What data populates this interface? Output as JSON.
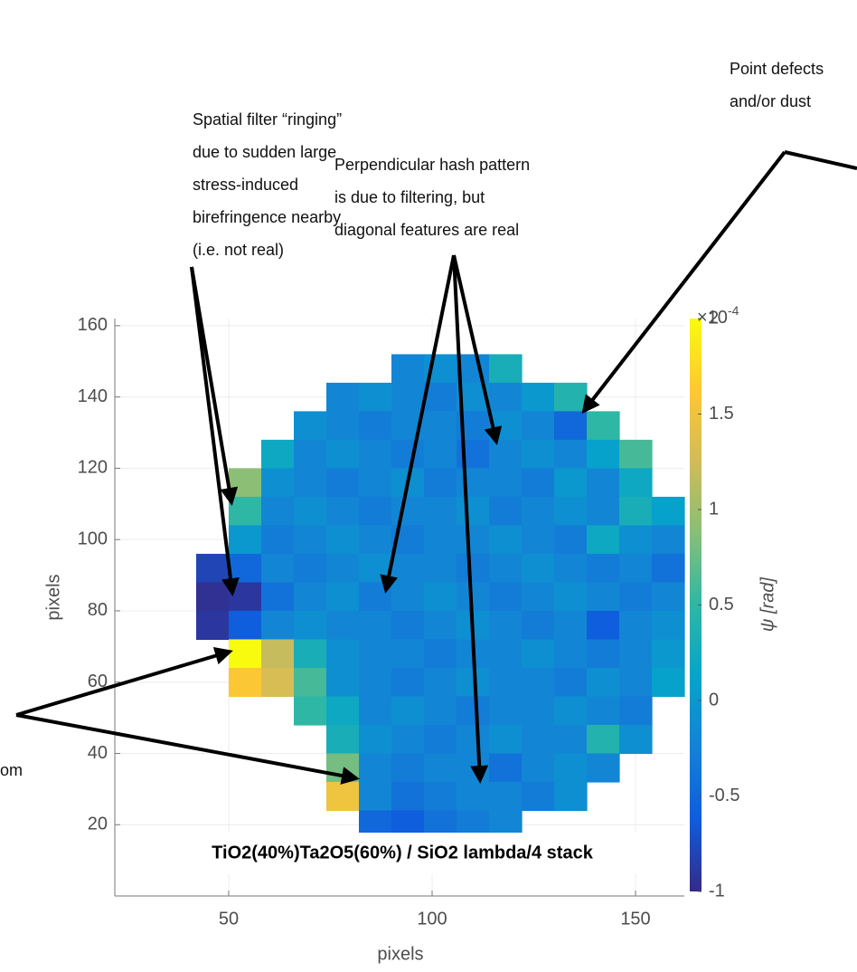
{
  "chart_data": {
    "type": "heatmap",
    "xlabel": "pixels",
    "ylabel": "pixels",
    "xlim": [
      22,
      162
    ],
    "ylim": [
      0,
      162
    ],
    "xticks": [
      50,
      100,
      150
    ],
    "yticks": [
      20,
      40,
      60,
      80,
      100,
      120,
      140,
      160
    ],
    "grid": true,
    "colormap": "parula",
    "clim": [
      -1,
      2
    ],
    "cticks": [
      -1,
      -0.5,
      0,
      0.5,
      1,
      1.5,
      2
    ],
    "colorbar_multiplier": "×10",
    "colorbar_exponent": "-4",
    "colorbar_label": "ψ [rad]",
    "inset_label": "TiO2(40%)Ta2O5(60%) / SiO2 lambda/4 stack",
    "x": [
      46,
      54,
      62,
      70,
      78,
      86,
      94,
      102,
      110,
      118,
      126,
      134,
      142,
      150,
      158
    ],
    "y": [
      148,
      140,
      132,
      124,
      116,
      108,
      100,
      92,
      84,
      76,
      68,
      60,
      52,
      44,
      36,
      28,
      20
    ],
    "z": [
      [
        null,
        null,
        null,
        null,
        null,
        null,
        -0.2,
        -0.1,
        -0.2,
        0.3,
        null,
        null,
        null,
        null,
        null
      ],
      [
        null,
        null,
        null,
        null,
        -0.2,
        -0.1,
        -0.2,
        -0.3,
        -0.1,
        -0.2,
        0,
        0.4,
        null,
        null,
        null
      ],
      [
        null,
        null,
        null,
        -0.1,
        -0.2,
        -0.3,
        -0.2,
        -0.2,
        -0.3,
        -0.1,
        -0.2,
        -0.5,
        0.5,
        null,
        null
      ],
      [
        null,
        null,
        0.2,
        -0.2,
        -0.1,
        -0.2,
        -0.3,
        -0.2,
        -0.4,
        -0.2,
        -0.1,
        -0.2,
        0.1,
        0.6,
        null
      ],
      [
        null,
        0.9,
        -0.1,
        -0.2,
        -0.3,
        -0.2,
        -0.1,
        -0.3,
        -0.2,
        -0.2,
        -0.3,
        0,
        -0.2,
        0.2,
        null
      ],
      [
        null,
        0.5,
        -0.2,
        -0.1,
        -0.2,
        -0.3,
        -0.2,
        -0.2,
        -0.1,
        -0.3,
        -0.2,
        -0.1,
        -0.2,
        0.3,
        0.1
      ],
      [
        null,
        0,
        -0.3,
        -0.2,
        -0.1,
        -0.2,
        -0.3,
        -0.2,
        -0.2,
        -0.1,
        -0.2,
        -0.3,
        0.2,
        -0.1,
        -0.2
      ],
      [
        -0.8,
        -0.5,
        -0.2,
        -0.3,
        -0.2,
        -0.1,
        -0.2,
        -0.2,
        -0.3,
        -0.2,
        -0.1,
        -0.2,
        -0.3,
        -0.2,
        -0.4
      ],
      [
        -0.95,
        -0.9,
        -0.4,
        -0.2,
        -0.1,
        -0.3,
        -0.2,
        -0.1,
        -0.2,
        -0.3,
        -0.2,
        -0.1,
        -0.2,
        -0.3,
        -0.2
      ],
      [
        -0.9,
        -0.6,
        -0.2,
        -0.1,
        -0.2,
        -0.2,
        -0.3,
        -0.2,
        -0.1,
        -0.2,
        -0.3,
        -0.2,
        -0.6,
        -0.2,
        -0.1
      ],
      [
        null,
        2,
        1.2,
        0.3,
        -0.1,
        -0.2,
        -0.2,
        -0.3,
        -0.2,
        -0.2,
        -0.1,
        -0.2,
        -0.3,
        -0.2,
        0
      ],
      [
        null,
        1.6,
        1.3,
        0.6,
        -0.1,
        -0.2,
        -0.3,
        -0.2,
        -0.1,
        -0.2,
        -0.2,
        -0.3,
        -0.1,
        -0.2,
        0.1
      ],
      [
        null,
        null,
        null,
        0.5,
        0.2,
        -0.2,
        -0.1,
        -0.2,
        -0.3,
        -0.2,
        -0.2,
        -0.1,
        -0.2,
        -0.3,
        null
      ],
      [
        null,
        null,
        null,
        null,
        0.3,
        -0.1,
        -0.2,
        -0.3,
        -0.2,
        -0.1,
        -0.2,
        -0.2,
        0.4,
        -0.1,
        null
      ],
      [
        null,
        null,
        null,
        null,
        0.8,
        -0.2,
        -0.3,
        -0.2,
        -0.2,
        -0.4,
        -0.2,
        -0.1,
        -0.2,
        null,
        null
      ],
      [
        null,
        null,
        null,
        null,
        1.5,
        -0.2,
        -0.4,
        -0.3,
        -0.2,
        -0.2,
        -0.3,
        -0.1,
        null,
        null,
        null
      ],
      [
        null,
        null,
        null,
        null,
        null,
        -0.5,
        -0.6,
        -0.4,
        -0.3,
        -0.2,
        null,
        null,
        null,
        null,
        null
      ]
    ],
    "annotations": [
      {
        "lines": [
          "Spatial filter “ringing”",
          "due to sudden large",
          "stress-induced",
          "birefringence nearby",
          "(i.e. not real)"
        ]
      },
      {
        "lines": [
          "Perpendicular hash pattern",
          "is due to filtering, but",
          "diagonal features are real"
        ]
      },
      {
        "lines": [
          "Point defects",
          "and/or dust"
        ]
      },
      {
        "lines": [
          "om"
        ]
      }
    ]
  }
}
